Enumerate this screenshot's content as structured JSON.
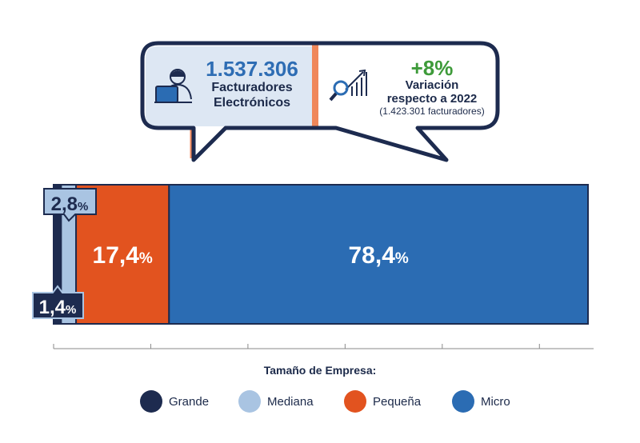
{
  "callout": {
    "facturadores_value": "1.537.306",
    "facturadores_label_1": "Facturadores",
    "facturadores_label_2": "Electrónicos",
    "variation_value": "+8%",
    "variation_label_1": "Variación",
    "variation_label_2": "respecto a 2022",
    "variation_sub": "(1.423.301 facturadores)"
  },
  "chart_data": {
    "type": "bar",
    "orientation": "horizontal-stacked",
    "xlabel": "Tamaño de Empresa:",
    "series": [
      {
        "name": "Grande",
        "value": 1.4,
        "label": "1,4",
        "color": "#1d2b4f"
      },
      {
        "name": "Mediana",
        "value": 2.8,
        "label": "2,8",
        "color": "#a9c4e2"
      },
      {
        "name": "Pequeña",
        "value": 17.4,
        "label": "17,4",
        "color": "#e2531f"
      },
      {
        "name": "Micro",
        "value": 78.4,
        "label": "78,4",
        "color": "#2b6cb3"
      }
    ],
    "unit": "%",
    "xlim": [
      0,
      100
    ],
    "grid": false,
    "legend_position": "bottom"
  },
  "colors": {
    "navy": "#1d2b4f",
    "light_panel": "#dde7f3",
    "orange_divider": "#f0875a",
    "icon_blue": "#2b6cb3"
  }
}
